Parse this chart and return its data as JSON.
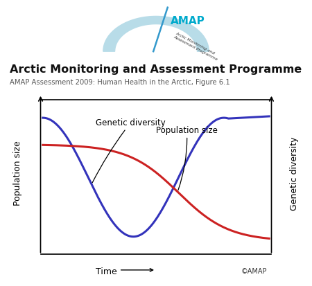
{
  "title": "Arctic Monitoring and Assessment Programme",
  "subtitle": "AMAP Assessment 2009: Human Health in the Arctic, Figure 6.1",
  "xlabel": "Time",
  "ylabel_left": "Population size",
  "ylabel_right": "Genetic diversity",
  "copyright": "©AMAP",
  "label_genetic": "Genetic diversity",
  "label_population": "Population size",
  "color_blue": "#3333bb",
  "color_red": "#cc2222",
  "bg_color": "#ffffff",
  "amap_text_color": "#00aacc",
  "amap_arc_color": "#b8dce8",
  "amap_line_color": "#3399cc",
  "title_color": "#111111",
  "subtitle_color": "#555555"
}
